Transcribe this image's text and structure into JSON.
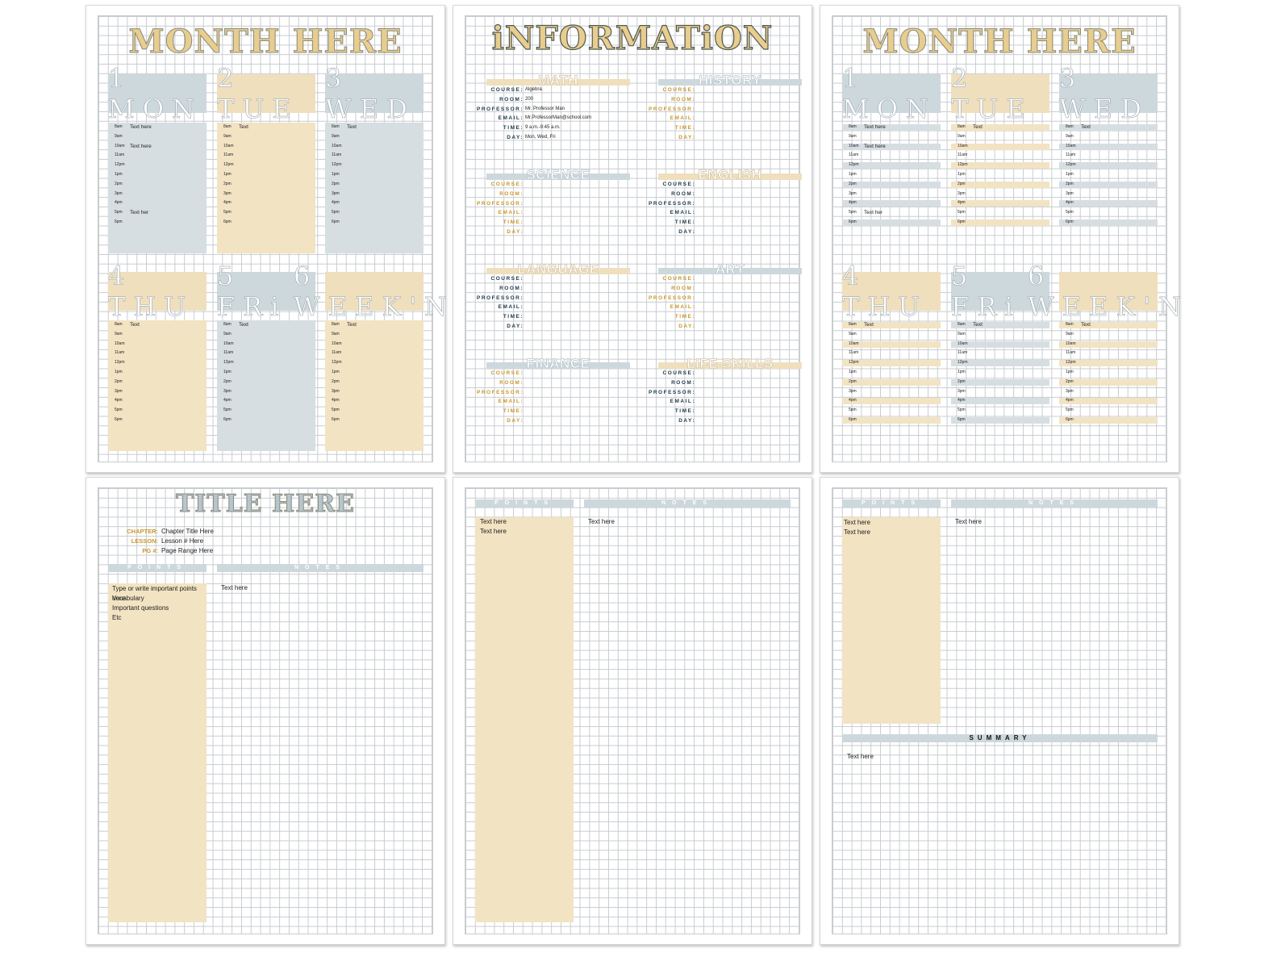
{
  "page1": {
    "title": "MONTH HERE",
    "days": [
      {
        "label": "1 MON",
        "color": "blue"
      },
      {
        "label": "2 TUE",
        "color": "tan"
      },
      {
        "label": "3 WED",
        "color": "blue"
      },
      {
        "label": "4 THU",
        "color": "tan"
      },
      {
        "label": "5 FRi",
        "color": "blue"
      },
      {
        "label": "6 WEEK'N",
        "color": "tan"
      }
    ],
    "times": [
      "8am",
      "9am",
      "10am",
      "11am",
      "12pm",
      "1pm",
      "2pm",
      "3pm",
      "4pm",
      "5pm",
      "6pm"
    ],
    "entries": [
      [
        "Text here",
        "",
        "Text here",
        "",
        "",
        "",
        "",
        "",
        "",
        "Text her",
        ""
      ],
      [
        "Text",
        "",
        "",
        "",
        "",
        "",
        "",
        "",
        "",
        "",
        ""
      ],
      [
        "Text",
        "",
        "",
        "",
        "",
        "",
        "",
        "",
        "",
        "",
        ""
      ],
      [
        "Text",
        "",
        "",
        "",
        "",
        "",
        "",
        "",
        "",
        "",
        ""
      ],
      [
        "Text",
        "",
        "",
        "",
        "",
        "",
        "",
        "",
        "",
        "",
        ""
      ],
      [
        "Text",
        "",
        "",
        "",
        "",
        "",
        "",
        "",
        "",
        "",
        ""
      ]
    ]
  },
  "page2": {
    "title": "iNFORMATiON",
    "field_labels": [
      "COURSE:",
      "ROOM:",
      "PROFESSOR:",
      "EMAIL:",
      "TIME:",
      "DAY:"
    ],
    "subjects": [
      {
        "name": "MATH",
        "bar": "tan",
        "label_color": "navy",
        "values": [
          "Algebra",
          "200",
          "Mr. Professor Man",
          "Mr.ProfessorMan@school.com",
          "9 a.m.-9:45 a.m.",
          "Mon, Wed, Fri"
        ]
      },
      {
        "name": "HISTORY",
        "bar": "blue",
        "label_color": "gold",
        "values": [
          "",
          "",
          "",
          "",
          "",
          ""
        ]
      },
      {
        "name": "SCIENCE",
        "bar": "blue",
        "label_color": "gold",
        "values": [
          "",
          "",
          "",
          "",
          "",
          ""
        ]
      },
      {
        "name": "ENGLISH",
        "bar": "tan",
        "label_color": "navy",
        "values": [
          "",
          "",
          "",
          "",
          "",
          ""
        ]
      },
      {
        "name": "LANGUAGE",
        "bar": "tan",
        "label_color": "navy",
        "values": [
          "",
          "",
          "",
          "",
          "",
          ""
        ]
      },
      {
        "name": "ART",
        "bar": "blue",
        "label_color": "gold",
        "values": [
          "",
          "",
          "",
          "",
          "",
          ""
        ]
      },
      {
        "name": "FINANCE",
        "bar": "blue",
        "label_color": "gold",
        "values": [
          "",
          "",
          "",
          "",
          "",
          ""
        ]
      },
      {
        "name": "LIFE SKILLS",
        "bar": "tan",
        "label_color": "navy",
        "values": [
          "",
          "",
          "",
          "",
          "",
          ""
        ]
      }
    ]
  },
  "page4": {
    "title": "TITLE HERE",
    "chapter_label": "CHAPTER:",
    "chapter_value": "Chapter Title Here",
    "lesson_label": "LESSON:",
    "lesson_value": "Lesson # Here",
    "pg_label": "PG #:",
    "pg_value": "Page Range Here",
    "points_header": "POINTS",
    "notes_header": "NOTES",
    "points_lines": [
      "Type or write important points here",
      "Vocabulary",
      "Important questions",
      "Etc"
    ],
    "notes_text": "Text here"
  },
  "page5": {
    "points_header": "POINTS",
    "notes_header": "NOTES",
    "points_lines": [
      "Text here",
      "Text here"
    ],
    "notes_text": "Text here"
  },
  "page6": {
    "points_header": "POINTS",
    "notes_header": "NOTES",
    "points_lines": [
      "Text here",
      "Text here"
    ],
    "notes_text": "Text here",
    "summary_header": "SUMMARY",
    "summary_text": "Text here"
  },
  "colors": {
    "tan": "#f2e3c3",
    "blue": "#d6dee2",
    "gold": "#c9962c",
    "navy": "#213a4a"
  }
}
